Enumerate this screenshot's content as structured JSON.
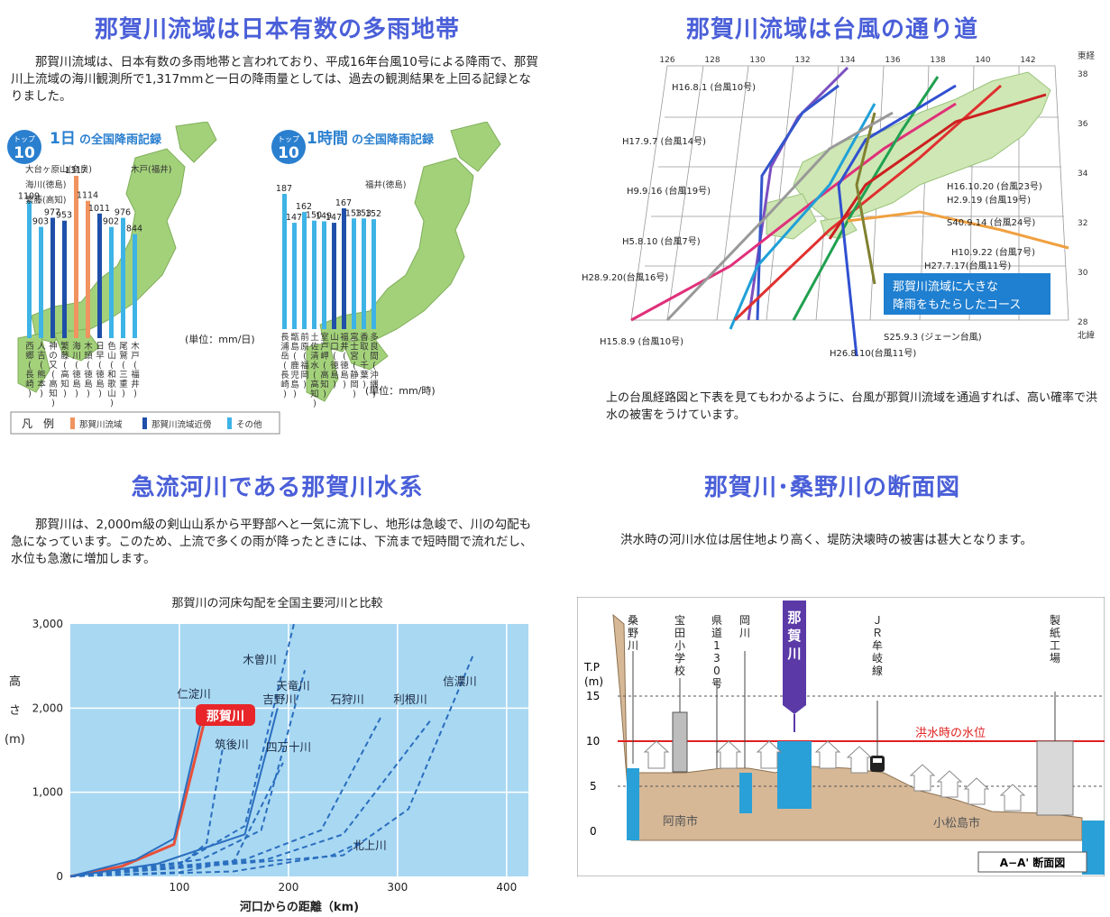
{
  "q1": {
    "title": "那賀川流域は日本有数の多雨地帯",
    "para": "那賀川流域は、日本有数の多雨地帯と言われており、平成16年台風10号による降雨で、那賀川上流域の海川観測所で1,317mmと一日の降雨量としては、過去の観測結果を上回る記録となりました。",
    "badge": "トップ",
    "badge_num": "10",
    "chart1": {
      "title_num": "1日",
      "title_rest": "の全国降雨記録",
      "unit": "(単位：mm/日)",
      "bars": [
        {
          "value": "1109",
          "label": "西郷(長崎)",
          "type": "other"
        },
        {
          "value": "903",
          "label": "人吉(熊本)",
          "type": "other"
        },
        {
          "value": "977",
          "label": "神の又(高知)",
          "type": "near"
        },
        {
          "value": "953",
          "label": "繁藤(高知)",
          "type": "near"
        },
        {
          "value": "1317",
          "label": "海川(徳島)",
          "type": "naka"
        },
        {
          "value": "1114",
          "label": "木頭(徳島)",
          "type": "naka"
        },
        {
          "value": "1011",
          "label": "日早(徳島)",
          "type": "near"
        },
        {
          "value": "902",
          "label": "色山(和歌山)",
          "type": "other"
        },
        {
          "value": "976",
          "label": "尾鷲(三重)",
          "type": "other"
        },
        {
          "value": "844",
          "label": "木戸(福井)",
          "type": "other"
        }
      ],
      "callouts": [
        "大台ヶ原山(奈良)",
        "海川(徳島)",
        "繁藤(高知)",
        "木戸(福井)"
      ]
    },
    "chart2": {
      "title_num": "1時間",
      "title_rest": "の全国降雨記録",
      "unit": "(単位：mm/時)",
      "bars": [
        {
          "value": "187",
          "label": "長浦岳(長崎)",
          "type": "other"
        },
        {
          "value": "147",
          "label": "甑島(鹿児島)",
          "type": "other"
        },
        {
          "value": "162",
          "label": "前原(福岡)",
          "type": "other"
        },
        {
          "value": "150",
          "label": "土佐清水(高知)",
          "type": "other"
        },
        {
          "value": "149",
          "label": "室戸岬(高知)",
          "type": "other"
        },
        {
          "value": "147",
          "label": "山口(徳島)",
          "type": "near"
        },
        {
          "value": "167",
          "label": "福井(徳島)",
          "type": "near"
        },
        {
          "value": "153",
          "label": "富士宮(静岡)",
          "type": "other"
        },
        {
          "value": "153",
          "label": "香取(千葉)",
          "type": "other"
        },
        {
          "value": "152",
          "label": "多良間(沖縄)",
          "type": "other"
        }
      ],
      "callouts": [
        "福井(徳島)"
      ]
    },
    "legend": {
      "title": "凡　例",
      "naka": "那賀川流域",
      "near": "那賀川流域近傍",
      "other": "その他"
    },
    "colors": {
      "naka": "#f0935f",
      "near": "#1f4fa8",
      "other": "#3eb3e6",
      "land": "#a3d17a"
    }
  },
  "q2": {
    "title": "那賀川流域は台風の通り道",
    "para": "上の台風経路図と下表を見てもわかるように、台風が那賀川流域を通過すれば、高い確率で洪水の被害をうけています。",
    "lon_ticks": [
      "126",
      "128",
      "130",
      "132",
      "134",
      "136",
      "138",
      "140",
      "142"
    ],
    "lon_label": "東経",
    "lat_ticks": [
      "38",
      "36",
      "34",
      "32",
      "30",
      "28"
    ],
    "lat_label": "北緯",
    "highlight": "那賀川流域に大きな\n降雨をもたらしたコース",
    "typhoons": [
      {
        "label": "H16.8.1 (台風10号)",
        "color": "#3355cc"
      },
      {
        "label": "H17.9.7 (台風14号)",
        "color": "#3355cc"
      },
      {
        "label": "H9.9.16 (台風19号)",
        "color": "#7a4fc0"
      },
      {
        "label": "H5.8.10 (台風7号)",
        "color": "#999999"
      },
      {
        "label": "H28.9.20(台風16号)",
        "color": "#e0307a"
      },
      {
        "label": "H15.8.9 (台風10号)",
        "color": "#20a0d8"
      },
      {
        "label": "H16.10.20 (台風23号)",
        "color": "#e03030"
      },
      {
        "label": "H2.9.19 (台風19号)",
        "color": "#20a050"
      },
      {
        "label": "S40.9.14 (台風24号)",
        "color": "#3050d0"
      },
      {
        "label": "H10.9.22 (台風7号)",
        "color": "#f0a040"
      },
      {
        "label": "H27.7.17(台風11号)",
        "color": "#cc2020"
      },
      {
        "label": "S25.9.3 (ジェーン台風)",
        "color": "#e0307a"
      },
      {
        "label": "H26.8.10(台風11号)",
        "color": "#808030"
      }
    ]
  },
  "q3": {
    "title": "急流河川である那賀川水系",
    "para": "那賀川は、2,000m級の剣山山系から平野部へと一気に流下し、地形は急峻で、川の勾配も急になっています。このため、上流で多くの雨が降ったときには、下流まで短時間で流れだし、水位も急激に増加します。",
    "chart_title": "那賀川の河床勾配を全国主要河川と比較"
  },
  "chart_data": {
    "type": "line",
    "xlabel": "河口からの距離（km)",
    "ylabel": "高さ（m）",
    "xlim": [
      0,
      420
    ],
    "ylim": [
      0,
      3000
    ],
    "xticks": [
      "100",
      "200",
      "300",
      "400"
    ],
    "yticks": [
      "0",
      "1,000",
      "2,000",
      "3,000"
    ],
    "series": [
      {
        "name": "那賀川",
        "color": "#e8503a",
        "highlight": true,
        "points": [
          [
            0,
            0
          ],
          [
            47,
            120
          ],
          [
            95,
            380
          ],
          [
            125,
            1950
          ]
        ]
      },
      {
        "name": "仁淀川",
        "color": "#2a6ebf",
        "points": [
          [
            0,
            0
          ],
          [
            60,
            200
          ],
          [
            95,
            450
          ],
          [
            120,
            1850
          ]
        ]
      },
      {
        "name": "吉野川",
        "color": "#2a6ebf",
        "points": [
          [
            0,
            0
          ],
          [
            80,
            150
          ],
          [
            160,
            500
          ],
          [
            190,
            2000
          ]
        ]
      },
      {
        "name": "天竜川",
        "color": "#2a6ebf",
        "points": [
          [
            0,
            0
          ],
          [
            100,
            150
          ],
          [
            160,
            600
          ],
          [
            205,
            3000
          ]
        ]
      },
      {
        "name": "木曽川",
        "color": "#2a6ebf",
        "points": [
          [
            0,
            0
          ],
          [
            120,
            200
          ],
          [
            175,
            550
          ],
          [
            215,
            2450
          ]
        ]
      },
      {
        "name": "筑後川",
        "color": "#2a6ebf",
        "points": [
          [
            0,
            0
          ],
          [
            100,
            120
          ],
          [
            125,
            400
          ],
          [
            140,
            1550
          ]
        ]
      },
      {
        "name": "四万十川",
        "color": "#2a6ebf",
        "points": [
          [
            0,
            0
          ],
          [
            100,
            50
          ],
          [
            150,
            180
          ],
          [
            195,
            1350
          ]
        ]
      },
      {
        "name": "石狩川",
        "color": "#2a6ebf",
        "points": [
          [
            0,
            0
          ],
          [
            160,
            200
          ],
          [
            230,
            550
          ],
          [
            285,
            1900
          ]
        ]
      },
      {
        "name": "利根川",
        "color": "#2a6ebf",
        "points": [
          [
            0,
            0
          ],
          [
            180,
            200
          ],
          [
            250,
            500
          ],
          [
            330,
            1850
          ]
        ]
      },
      {
        "name": "信濃川",
        "color": "#2a6ebf",
        "points": [
          [
            0,
            0
          ],
          [
            250,
            250
          ],
          [
            310,
            800
          ],
          [
            370,
            2650
          ]
        ]
      },
      {
        "name": "北上川",
        "color": "#2a6ebf",
        "points": [
          [
            0,
            0
          ],
          [
            150,
            60
          ],
          [
            240,
            250
          ],
          [
            265,
            400
          ]
        ]
      }
    ]
  },
  "q4": {
    "title": "那賀川･桑野川の断面図",
    "para": "洪水時の河川水位は居住地より高く、堤防決壊時の被害は甚大となります。",
    "tp": "T.P",
    "tp_unit": "(m)",
    "levels": [
      "15",
      "10",
      "5",
      "0"
    ],
    "flood_label": "洪水時の水位",
    "labels": {
      "kuwano": "桑野川",
      "takarada": "宝田小学校",
      "kendo": "県道130号",
      "okagawa": "岡川",
      "nakagawa": "那賀川",
      "jr": "ＪＲ牟岐線",
      "seishi": "製紙工場"
    },
    "anan": "阿南市",
    "komatsushima": "小松島市",
    "section": "A−A' 断面図"
  }
}
